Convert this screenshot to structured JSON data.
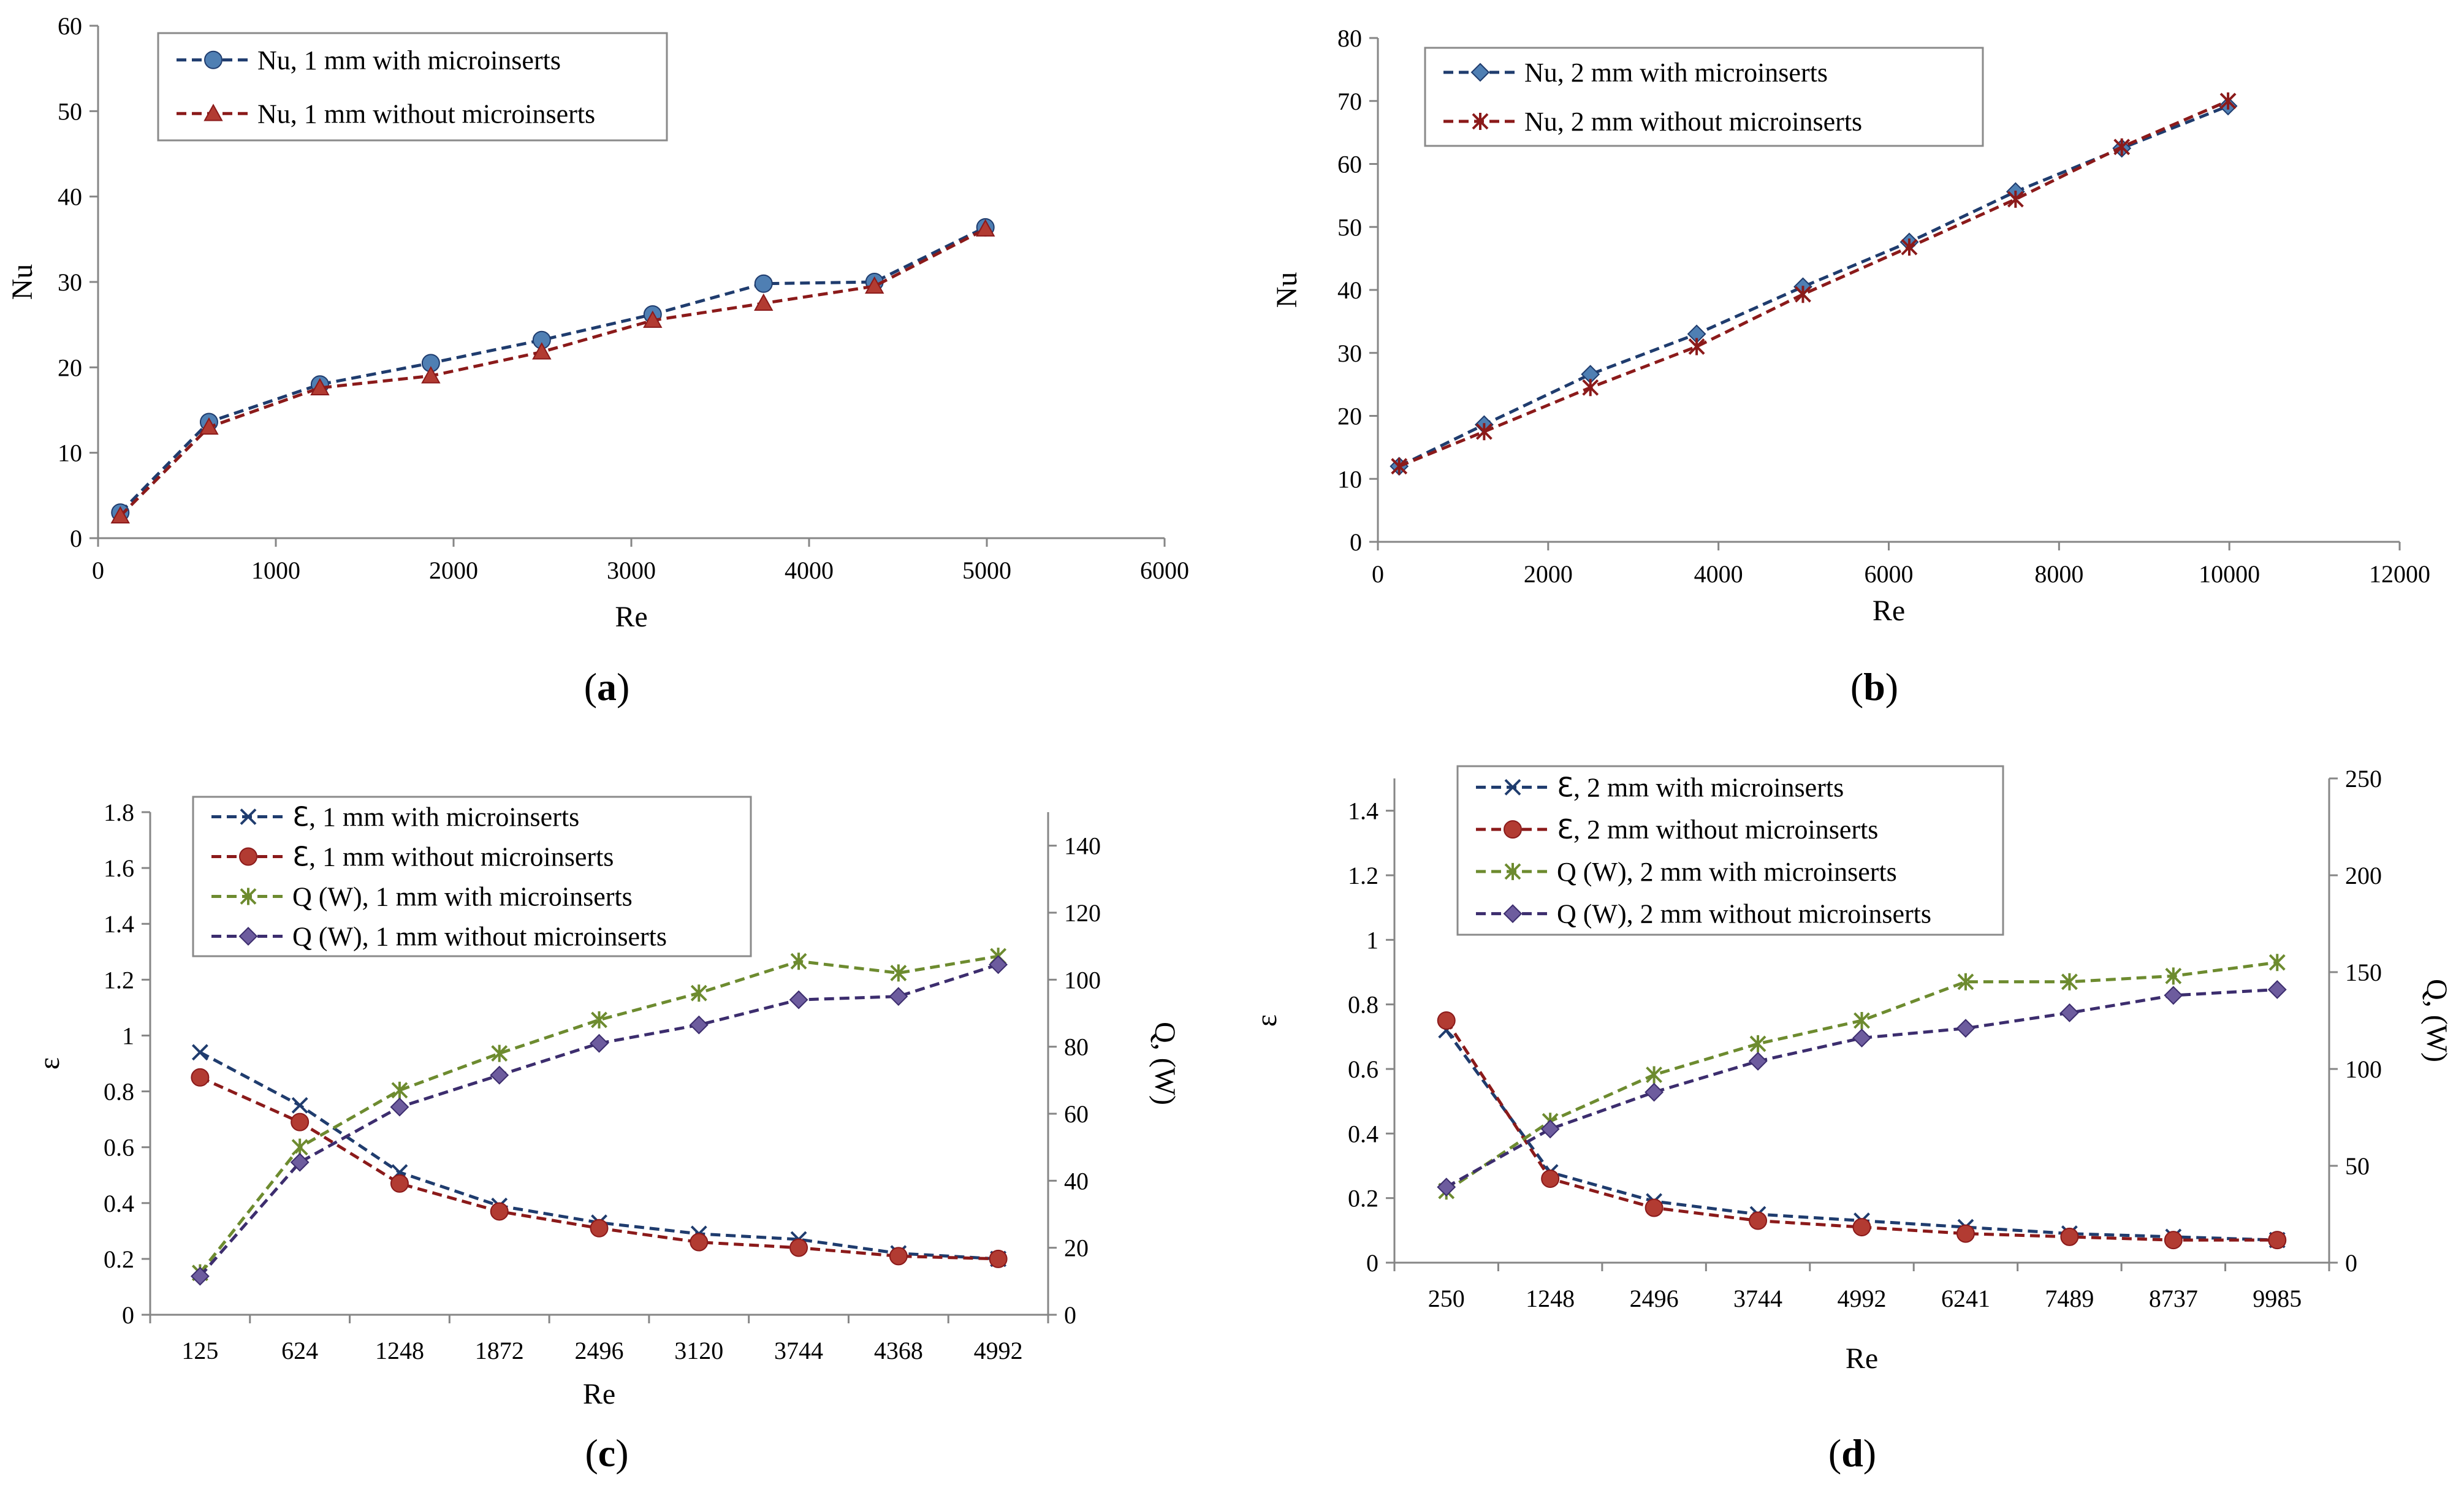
{
  "figure": {
    "panel_labels": [
      {
        "open": "(",
        "letter": "a",
        "close": ")"
      },
      {
        "open": "(",
        "letter": "b",
        "close": ")"
      },
      {
        "open": "(",
        "letter": "c",
        "close": ")"
      },
      {
        "open": "(",
        "letter": "d",
        "close": ")"
      }
    ]
  },
  "colors": {
    "blue": "#1f3c6e",
    "red": "#8b1a1a",
    "green": "#6d8b2f",
    "purple": "#3c2d6e",
    "marker_blue": "#4f7fb3",
    "marker_red": "#b23b32",
    "marker_purple": "#6d5c9e",
    "axis": "#868686"
  },
  "chart_data": [
    {
      "type": "line",
      "panel": "a",
      "xlabel": "Re",
      "ylabel": "Nu",
      "xlim": [
        0,
        6000
      ],
      "ylim": [
        0,
        60
      ],
      "xticks": [
        0,
        1000,
        2000,
        3000,
        4000,
        5000,
        6000
      ],
      "yticks": [
        0,
        10,
        20,
        30,
        40,
        50,
        60
      ],
      "legend_position": "top-left",
      "series": [
        {
          "name": "Nu, 1 mm with microinserts",
          "color_key": "blue",
          "marker": "circle",
          "x": [
            125,
            624,
            1248,
            1872,
            2496,
            3120,
            3744,
            4368,
            4992
          ],
          "y": [
            3.0,
            13.6,
            18.0,
            20.5,
            23.2,
            26.2,
            29.8,
            30.0,
            36.4
          ]
        },
        {
          "name": "Nu, 1 mm without microinserts",
          "color_key": "red",
          "marker": "triangle",
          "x": [
            125,
            624,
            1248,
            1872,
            2496,
            3120,
            3744,
            4368,
            4992
          ],
          "y": [
            2.6,
            13.0,
            17.6,
            19.0,
            21.8,
            25.5,
            27.5,
            29.5,
            36.2
          ]
        }
      ]
    },
    {
      "type": "line",
      "panel": "b",
      "xlabel": "Re",
      "ylabel": "Nu",
      "xlim": [
        0,
        12000
      ],
      "ylim": [
        0,
        80
      ],
      "xticks": [
        0,
        2000,
        4000,
        6000,
        8000,
        10000,
        12000
      ],
      "yticks": [
        0,
        10,
        20,
        30,
        40,
        50,
        60,
        70,
        80
      ],
      "legend_position": "top-left",
      "series": [
        {
          "name": "Nu, 2 mm with microinserts",
          "color_key": "blue",
          "marker": "diamond",
          "x": [
            250,
            1248,
            2496,
            3744,
            4992,
            6241,
            7489,
            8737,
            9985
          ],
          "y": [
            12.0,
            18.6,
            26.6,
            33.0,
            40.5,
            47.6,
            55.6,
            62.5,
            69.2
          ]
        },
        {
          "name": "Nu, 2 mm without microinserts",
          "color_key": "red",
          "marker": "star",
          "x": [
            250,
            1248,
            2496,
            3744,
            4992,
            6241,
            7489,
            8737,
            9985
          ],
          "y": [
            12.0,
            17.5,
            24.5,
            31.0,
            39.3,
            46.8,
            54.4,
            62.7,
            70.0
          ]
        }
      ]
    },
    {
      "type": "line",
      "panel": "c",
      "xlabel": "Re",
      "ylabel": "ε",
      "y2label": "Q, (W)",
      "categories": [
        "125",
        "624",
        "1248",
        "1872",
        "2496",
        "3120",
        "3744",
        "4368",
        "4992"
      ],
      "ylim": [
        0,
        1.8
      ],
      "y2lim": [
        0,
        150
      ],
      "yticks": [
        "0",
        "0.2",
        "0.4",
        "0.6",
        "0.8",
        "1",
        "1.2",
        "1.4",
        "1.6",
        "1.8"
      ],
      "y2ticks": [
        "0",
        "20",
        "40",
        "60",
        "80",
        "100",
        "120",
        "140"
      ],
      "legend_position": "top-center",
      "series": [
        {
          "name": "ℇ, 1 mm with microinserts",
          "color_key": "blue",
          "marker": "x",
          "axis": "left",
          "values": [
            0.94,
            0.75,
            0.51,
            0.39,
            0.33,
            0.29,
            0.27,
            0.22,
            0.2
          ]
        },
        {
          "name": "ℇ, 1 mm without microinserts",
          "color_key": "red",
          "marker": "circle",
          "axis": "left",
          "values": [
            0.85,
            0.69,
            0.47,
            0.37,
            0.31,
            0.26,
            0.24,
            0.21,
            0.2
          ]
        },
        {
          "name": "Q (W), 1 mm with microinserts",
          "color_key": "green",
          "marker": "star",
          "axis": "right",
          "values": [
            12.5,
            50,
            67,
            78,
            88,
            96,
            105.5,
            102,
            107
          ]
        },
        {
          "name": "Q (W), 1 mm without microinserts",
          "color_key": "purple",
          "marker": "diamond",
          "axis": "right",
          "values": [
            11.5,
            45.5,
            62,
            71.5,
            81,
            86.5,
            94,
            95,
            104.5
          ]
        }
      ]
    },
    {
      "type": "line",
      "panel": "d",
      "xlabel": "Re",
      "ylabel": "ε",
      "y2label": "Q, (W)",
      "categories": [
        "250",
        "1248",
        "2496",
        "3744",
        "4992",
        "6241",
        "7489",
        "8737",
        "9985"
      ],
      "ylim": [
        0,
        1.5
      ],
      "y2lim": [
        0,
        250
      ],
      "yticks": [
        "0",
        "0.2",
        "0.4",
        "0.6",
        "0.8",
        "1",
        "1.2",
        "1.4"
      ],
      "y2ticks": [
        "0",
        "50",
        "100",
        "150",
        "200",
        "250"
      ],
      "legend_position": "top-left",
      "series": [
        {
          "name": "ℇ, 2 mm with microinserts",
          "color_key": "blue",
          "marker": "x",
          "axis": "left",
          "values": [
            0.72,
            0.28,
            0.19,
            0.15,
            0.13,
            0.11,
            0.09,
            0.08,
            0.07
          ]
        },
        {
          "name": "ℇ, 2 mm without microinserts",
          "color_key": "red",
          "marker": "circle",
          "axis": "left",
          "values": [
            0.75,
            0.26,
            0.17,
            0.13,
            0.11,
            0.09,
            0.08,
            0.07,
            0.07
          ]
        },
        {
          "name": "Q (W), 2 mm with microinserts",
          "color_key": "green",
          "marker": "star",
          "axis": "right",
          "values": [
            37,
            73,
            97,
            113,
            125,
            145,
            145,
            148,
            155
          ]
        },
        {
          "name": "Q (W), 2 mm without microinserts",
          "color_key": "purple",
          "marker": "diamond",
          "axis": "right",
          "values": [
            39,
            69,
            88,
            104,
            116,
            121,
            129,
            138,
            141
          ]
        }
      ]
    }
  ]
}
